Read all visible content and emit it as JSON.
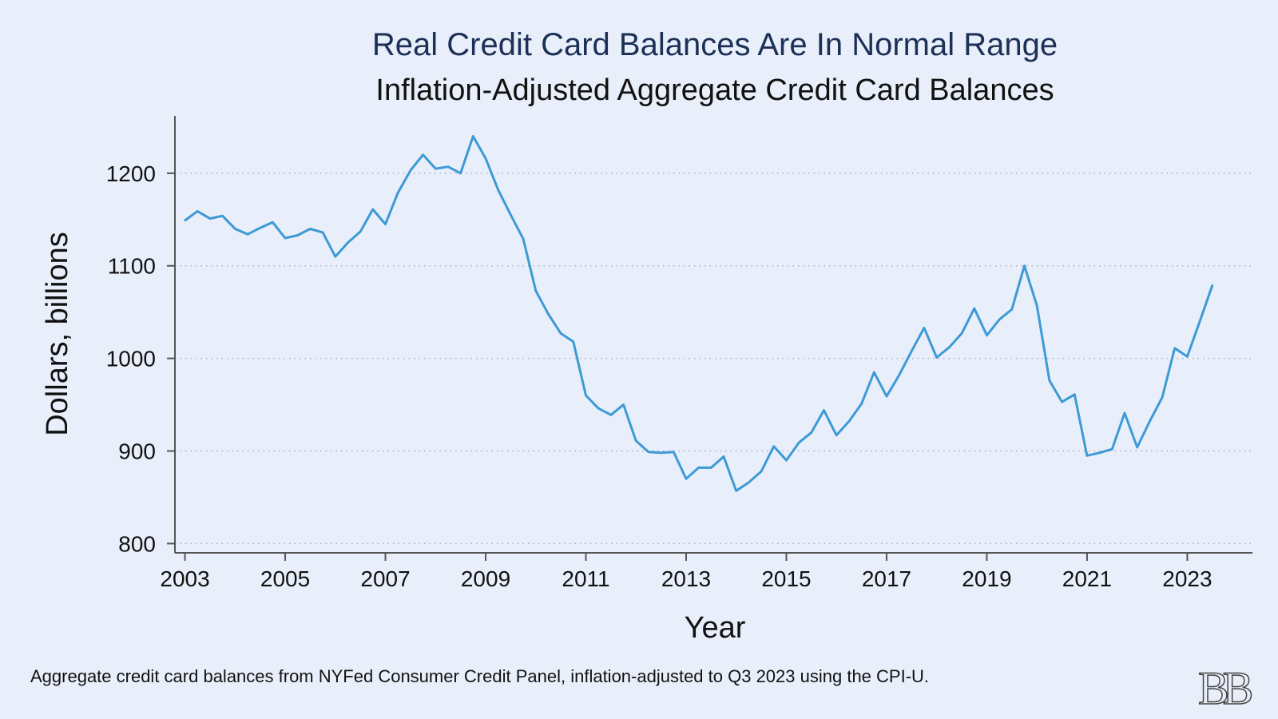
{
  "title": "Real Credit Card Balances Are In Normal Range",
  "subtitle": "Inflation-Adjusted Aggregate Credit Card Balances",
  "footnote": "Aggregate credit card balances from NYFed Consumer Credit Panel, inflation-adjusted to Q3 2023 using the CPI-U.",
  "logo": "BB",
  "colors": {
    "line": "#3d9ad6",
    "background": "#e9effa",
    "title": "#1c3057",
    "grid": "#a9afba"
  },
  "chart_data": {
    "type": "line",
    "title": "Real Credit Card Balances Are In Normal Range",
    "subtitle": "Inflation-Adjusted Aggregate Credit Card Balances",
    "xlabel": "Year",
    "ylabel": "Dollars, billions",
    "xlim": [
      2002.8,
      2024.3
    ],
    "ylim": [
      790,
      1262
    ],
    "xticks": [
      2003,
      2005,
      2007,
      2009,
      2011,
      2013,
      2015,
      2017,
      2019,
      2021,
      2023
    ],
    "yticks": [
      800,
      900,
      1000,
      1100,
      1200
    ],
    "grid": "horizontal dotted",
    "legend": "none",
    "x": [
      2003.0,
      2003.25,
      2003.5,
      2003.75,
      2004.0,
      2004.25,
      2004.5,
      2004.75,
      2005.0,
      2005.25,
      2005.5,
      2005.75,
      2006.0,
      2006.25,
      2006.5,
      2006.75,
      2007.0,
      2007.25,
      2007.5,
      2007.75,
      2008.0,
      2008.25,
      2008.5,
      2008.75,
      2009.0,
      2009.25,
      2009.5,
      2009.75,
      2010.0,
      2010.25,
      2010.5,
      2010.75,
      2011.0,
      2011.25,
      2011.5,
      2011.75,
      2012.0,
      2012.25,
      2012.5,
      2012.75,
      2013.0,
      2013.25,
      2013.5,
      2013.75,
      2014.0,
      2014.25,
      2014.5,
      2014.75,
      2015.0,
      2015.25,
      2015.5,
      2015.75,
      2016.0,
      2016.25,
      2016.5,
      2016.75,
      2017.0,
      2017.25,
      2017.5,
      2017.75,
      2018.0,
      2018.25,
      2018.5,
      2018.75,
      2019.0,
      2019.25,
      2019.5,
      2019.75,
      2020.0,
      2020.25,
      2020.5,
      2020.75,
      2021.0,
      2021.25,
      2021.5,
      2021.75,
      2022.0,
      2022.25,
      2022.5,
      2022.75,
      2023.0,
      2023.25,
      2023.5
    ],
    "series": [
      {
        "values": [
          1149,
          1159,
          1151,
          1154,
          1140,
          1134,
          1141,
          1147,
          1130,
          1133,
          1140,
          1136,
          1110,
          1125,
          1137,
          1161,
          1145,
          1179,
          1203,
          1220,
          1205,
          1207,
          1200,
          1240,
          1216,
          1182,
          1155,
          1129,
          1073,
          1048,
          1027,
          1018,
          960,
          946,
          939,
          950,
          911,
          899,
          898,
          899,
          870,
          882,
          882,
          894,
          857,
          866,
          878,
          905,
          890,
          909,
          920,
          944,
          917,
          932,
          951,
          985,
          959,
          982,
          1008,
          1033,
          1001,
          1012,
          1027,
          1054,
          1025,
          1042,
          1053,
          1100,
          1057,
          976,
          953,
          961,
          895,
          898,
          902,
          941,
          904,
          932,
          958,
          1011,
          1002,
          1040,
          1079
        ]
      }
    ]
  }
}
